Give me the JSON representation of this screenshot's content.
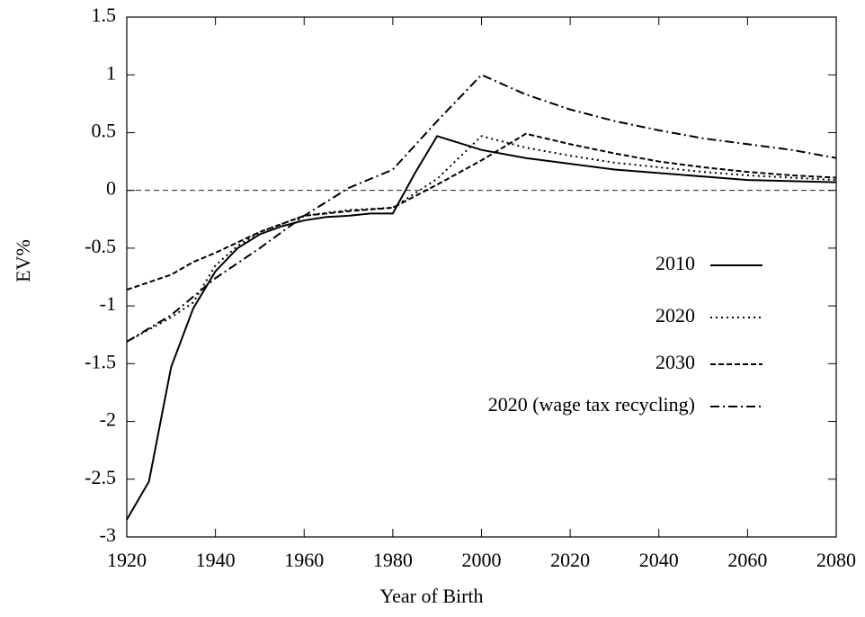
{
  "chart_data": {
    "type": "line",
    "xlabel": "Year of Birth",
    "ylabel": "EV%",
    "xlim": [
      1920,
      2080
    ],
    "xticks": [
      1920,
      1940,
      1960,
      1980,
      2000,
      2020,
      2040,
      2060,
      2080
    ],
    "ylim": [
      -3,
      1.5
    ],
    "yticks": [
      1.5,
      1,
      0.5,
      0,
      -0.5,
      -1,
      -1.5,
      -2,
      -2.5,
      -3
    ],
    "reference_line": 0,
    "legend": "right",
    "series": [
      {
        "name": "2010",
        "color": "#000000",
        "style": "solid",
        "x": [
          1920,
          1925,
          1930,
          1935,
          1940,
          1945,
          1950,
          1955,
          1960,
          1965,
          1970,
          1975,
          1980,
          1985,
          1990,
          2000,
          2010,
          2020,
          2030,
          2040,
          2050,
          2060,
          2070,
          2080
        ],
        "values": [
          -2.85,
          -2.52,
          -1.53,
          -1.02,
          -0.7,
          -0.5,
          -0.38,
          -0.31,
          -0.26,
          -0.23,
          -0.22,
          -0.2,
          -0.2,
          0.15,
          0.47,
          0.35,
          0.28,
          0.23,
          0.18,
          0.15,
          0.12,
          0.09,
          0.08,
          0.07
        ]
      },
      {
        "name": "2020",
        "color": "#000000",
        "style": "dotted",
        "x": [
          1920,
          1930,
          1935,
          1940,
          1945,
          1950,
          1960,
          1970,
          1980,
          1990,
          2000,
          2010,
          2020,
          2030,
          2040,
          2050,
          2060,
          2070,
          2080
        ],
        "values": [
          -1.31,
          -1.1,
          -0.97,
          -0.65,
          -0.48,
          -0.36,
          -0.22,
          -0.17,
          -0.15,
          0.1,
          0.47,
          0.37,
          0.3,
          0.24,
          0.2,
          0.16,
          0.13,
          0.11,
          0.09
        ]
      },
      {
        "name": "2030",
        "color": "#000000",
        "style": "dashed",
        "x": [
          1920,
          1930,
          1935,
          1940,
          1950,
          1960,
          1970,
          1980,
          1990,
          2000,
          2010,
          2020,
          2030,
          2040,
          2050,
          2060,
          2070,
          2080
        ],
        "values": [
          -0.86,
          -0.73,
          -0.62,
          -0.54,
          -0.36,
          -0.22,
          -0.18,
          -0.15,
          0.05,
          0.26,
          0.49,
          0.4,
          0.32,
          0.25,
          0.2,
          0.16,
          0.13,
          0.11
        ]
      },
      {
        "name": "2020 (wage tax recycling)",
        "color": "#000000",
        "style": "dashdot",
        "x": [
          1920,
          1930,
          1940,
          1950,
          1960,
          1970,
          1980,
          1990,
          2000,
          2010,
          2020,
          2030,
          2040,
          2050,
          2060,
          2070,
          2080
        ],
        "values": [
          -1.31,
          -1.08,
          -0.76,
          -0.5,
          -0.22,
          0.02,
          0.18,
          0.6,
          1.0,
          0.83,
          0.7,
          0.6,
          0.52,
          0.45,
          0.4,
          0.35,
          0.28
        ]
      }
    ]
  }
}
